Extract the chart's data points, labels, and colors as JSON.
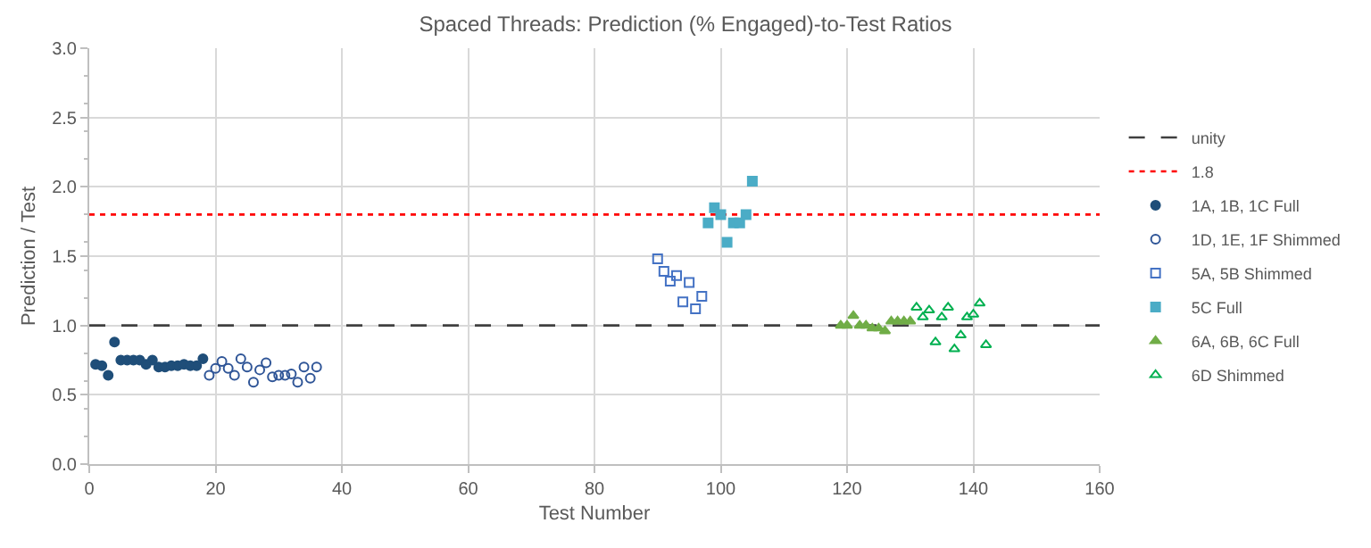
{
  "chart_data": {
    "type": "scatter",
    "title": "Spaced Threads: Prediction (% Engaged)-to-Test Ratios",
    "xlabel": "Test Number",
    "ylabel": "Prediction / Test",
    "xlim": [
      0,
      160
    ],
    "xticks": [
      0,
      20,
      40,
      60,
      80,
      100,
      120,
      140,
      160
    ],
    "ylim": [
      0,
      3
    ],
    "yticks": [
      {
        "value": 0,
        "label": "0.0"
      },
      {
        "value": 0.5,
        "label": "0.5"
      },
      {
        "value": 1,
        "label": "1.0"
      },
      {
        "value": 1.5,
        "label": "1.5"
      },
      {
        "value": 2,
        "label": "2.0"
      },
      {
        "value": 2.5,
        "label": "2.5"
      },
      {
        "value": 3,
        "label": "3.0"
      }
    ],
    "grid": true,
    "legend": "right",
    "series": [
      {
        "name": "1A, 1B, 1C Full",
        "color": "#1f4e79",
        "marker": "circle",
        "x": [
          1,
          2,
          3,
          4,
          5,
          6,
          7,
          8,
          9,
          10,
          11,
          12,
          13,
          14,
          15,
          16,
          17,
          18
        ],
        "values": [
          0.72,
          0.71,
          0.64,
          0.88,
          0.75,
          0.75,
          0.75,
          0.75,
          0.72,
          0.75,
          0.7,
          0.7,
          0.71,
          0.71,
          0.72,
          0.71,
          0.71,
          0.76
        ]
      },
      {
        "name": "1D, 1E, 1F Shimmed",
        "color": "#2f5597",
        "marker": "circle-open",
        "x": [
          19,
          20,
          21,
          22,
          23,
          24,
          25,
          26,
          27,
          28,
          29,
          30,
          31,
          32,
          33,
          34,
          35,
          36
        ],
        "values": [
          0.64,
          0.69,
          0.74,
          0.69,
          0.64,
          0.76,
          0.7,
          0.59,
          0.68,
          0.73,
          0.63,
          0.64,
          0.64,
          0.65,
          0.59,
          0.7,
          0.62,
          0.7
        ]
      },
      {
        "name": "5A, 5B Shimmed",
        "color": "#4472c4",
        "marker": "square-open",
        "x": [
          90,
          91,
          92,
          93,
          94,
          95,
          96,
          97
        ],
        "values": [
          1.48,
          1.39,
          1.32,
          1.36,
          1.17,
          1.31,
          1.12,
          1.21
        ]
      },
      {
        "name": "5C Full",
        "color": "#4bacc6",
        "marker": "square",
        "x": [
          98,
          99,
          100,
          101,
          102,
          103,
          104,
          105
        ],
        "values": [
          1.74,
          1.85,
          1.8,
          1.6,
          1.74,
          1.74,
          1.8,
          2.04
        ]
      },
      {
        "name": "6A, 6B, 6C Full",
        "color": "#70ad47",
        "marker": "triangle",
        "x": [
          119,
          120,
          121,
          122,
          123,
          124,
          125,
          126,
          127,
          128,
          129,
          130
        ],
        "values": [
          1.0,
          1.0,
          1.07,
          1.0,
          1.0,
          0.98,
          0.98,
          0.96,
          1.03,
          1.03,
          1.03,
          1.03
        ]
      },
      {
        "name": "6D Shimmed",
        "color": "#00b050",
        "marker": "triangle-open",
        "x": [
          131,
          132,
          133,
          134,
          135,
          136,
          137,
          138,
          139,
          140,
          141,
          142
        ],
        "values": [
          1.13,
          1.06,
          1.11,
          0.88,
          1.06,
          1.13,
          0.83,
          0.93,
          1.06,
          1.08,
          1.16,
          0.86
        ]
      }
    ],
    "ref_lines": [
      {
        "axis": "y",
        "value": 1,
        "label": "unity",
        "color": "#404040",
        "line_style": "dashed"
      },
      {
        "axis": "y",
        "value": 1.8,
        "label": "1.8",
        "color": "#ff0000",
        "line_style": "dotted"
      }
    ]
  }
}
